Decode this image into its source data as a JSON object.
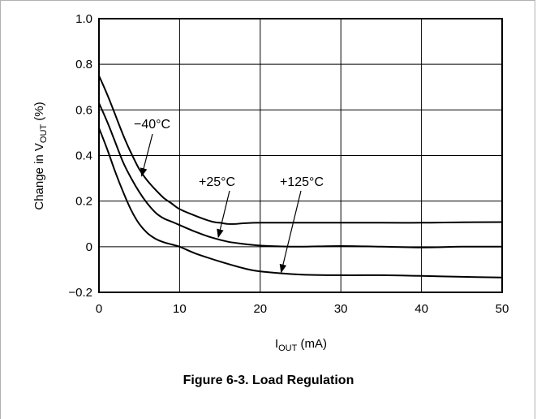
{
  "caption": "Figure 6-3. Load Regulation",
  "chart_data": {
    "type": "line",
    "xlabel": {
      "main": "I",
      "sub": "OUT",
      "rest": " (mA)"
    },
    "ylabel": {
      "main": "Change in V",
      "sub": "OUT",
      "rest": " (%)"
    },
    "xlim": [
      0,
      50
    ],
    "ylim": [
      -0.2,
      1.0
    ],
    "x_ticks": [
      "0",
      "10",
      "20",
      "30",
      "40",
      "50"
    ],
    "y_ticks": [
      "1.0",
      "0.8",
      "0.6",
      "0.4",
      "0.2",
      "0",
      "−0.2"
    ],
    "grid": true,
    "series": [
      {
        "name": "−40°C",
        "x": [
          0,
          1,
          2,
          3,
          4,
          5,
          6,
          7,
          8,
          9,
          10,
          12,
          14,
          15,
          16,
          17,
          18,
          20,
          25,
          30,
          35,
          40,
          45,
          50
        ],
        "y": [
          0.75,
          0.67,
          0.58,
          0.49,
          0.41,
          0.34,
          0.29,
          0.25,
          0.215,
          0.19,
          0.165,
          0.135,
          0.11,
          0.105,
          0.1,
          0.1,
          0.103,
          0.105,
          0.105,
          0.105,
          0.105,
          0.105,
          0.107,
          0.108
        ]
      },
      {
        "name": "+25°C",
        "x": [
          0,
          1,
          2,
          3,
          4,
          5,
          6,
          7,
          8,
          9,
          10,
          12,
          14,
          16,
          18,
          20,
          22,
          25,
          30,
          35,
          40,
          45,
          50
        ],
        "y": [
          0.63,
          0.55,
          0.46,
          0.37,
          0.3,
          0.24,
          0.19,
          0.15,
          0.125,
          0.11,
          0.095,
          0.065,
          0.04,
          0.022,
          0.012,
          0.005,
          0.002,
          0.0,
          0.003,
          0.0,
          -0.003,
          0.0,
          0.0
        ]
      },
      {
        "name": "+125°C",
        "x": [
          0,
          1,
          2,
          3,
          4,
          5,
          6,
          7,
          8,
          9,
          10,
          12,
          15,
          18,
          20,
          25,
          30,
          35,
          40,
          45,
          50
        ],
        "y": [
          0.52,
          0.43,
          0.33,
          0.24,
          0.16,
          0.1,
          0.06,
          0.035,
          0.02,
          0.01,
          0.0,
          -0.03,
          -0.065,
          -0.095,
          -0.108,
          -0.122,
          -0.125,
          -0.125,
          -0.128,
          -0.132,
          -0.135
        ]
      }
    ]
  }
}
